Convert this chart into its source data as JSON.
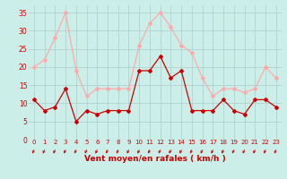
{
  "title": "",
  "xlabel": "Vent moyen/en rafales ( km/h )",
  "x": [
    0,
    1,
    2,
    3,
    4,
    5,
    6,
    7,
    8,
    9,
    10,
    11,
    12,
    13,
    14,
    15,
    16,
    17,
    18,
    19,
    20,
    21,
    22,
    23
  ],
  "mean_wind": [
    11,
    8,
    9,
    14,
    5,
    8,
    7,
    8,
    8,
    8,
    19,
    19,
    23,
    17,
    19,
    8,
    8,
    8,
    11,
    8,
    7,
    11,
    11,
    9
  ],
  "gusts": [
    20,
    22,
    28,
    35,
    19,
    12,
    14,
    14,
    14,
    14,
    26,
    32,
    35,
    31,
    26,
    24,
    17,
    12,
    14,
    14,
    13,
    14,
    20,
    17
  ],
  "mean_color": "#cc0000",
  "gust_color": "#ffaaaa",
  "bg_color": "#cceee8",
  "grid_color": "#aacccc",
  "ylim": [
    0,
    37
  ],
  "xlim": [
    -0.5,
    23.5
  ],
  "yticks": [
    0,
    5,
    10,
    15,
    20,
    25,
    30,
    35
  ],
  "xticks": [
    0,
    1,
    2,
    3,
    4,
    5,
    6,
    7,
    8,
    9,
    10,
    11,
    12,
    13,
    14,
    15,
    16,
    17,
    18,
    19,
    20,
    21,
    22,
    23
  ],
  "xlabel_color": "#cc0000",
  "tick_color": "#cc0000",
  "marker": "D",
  "markersize": 2,
  "linewidth": 0.9
}
